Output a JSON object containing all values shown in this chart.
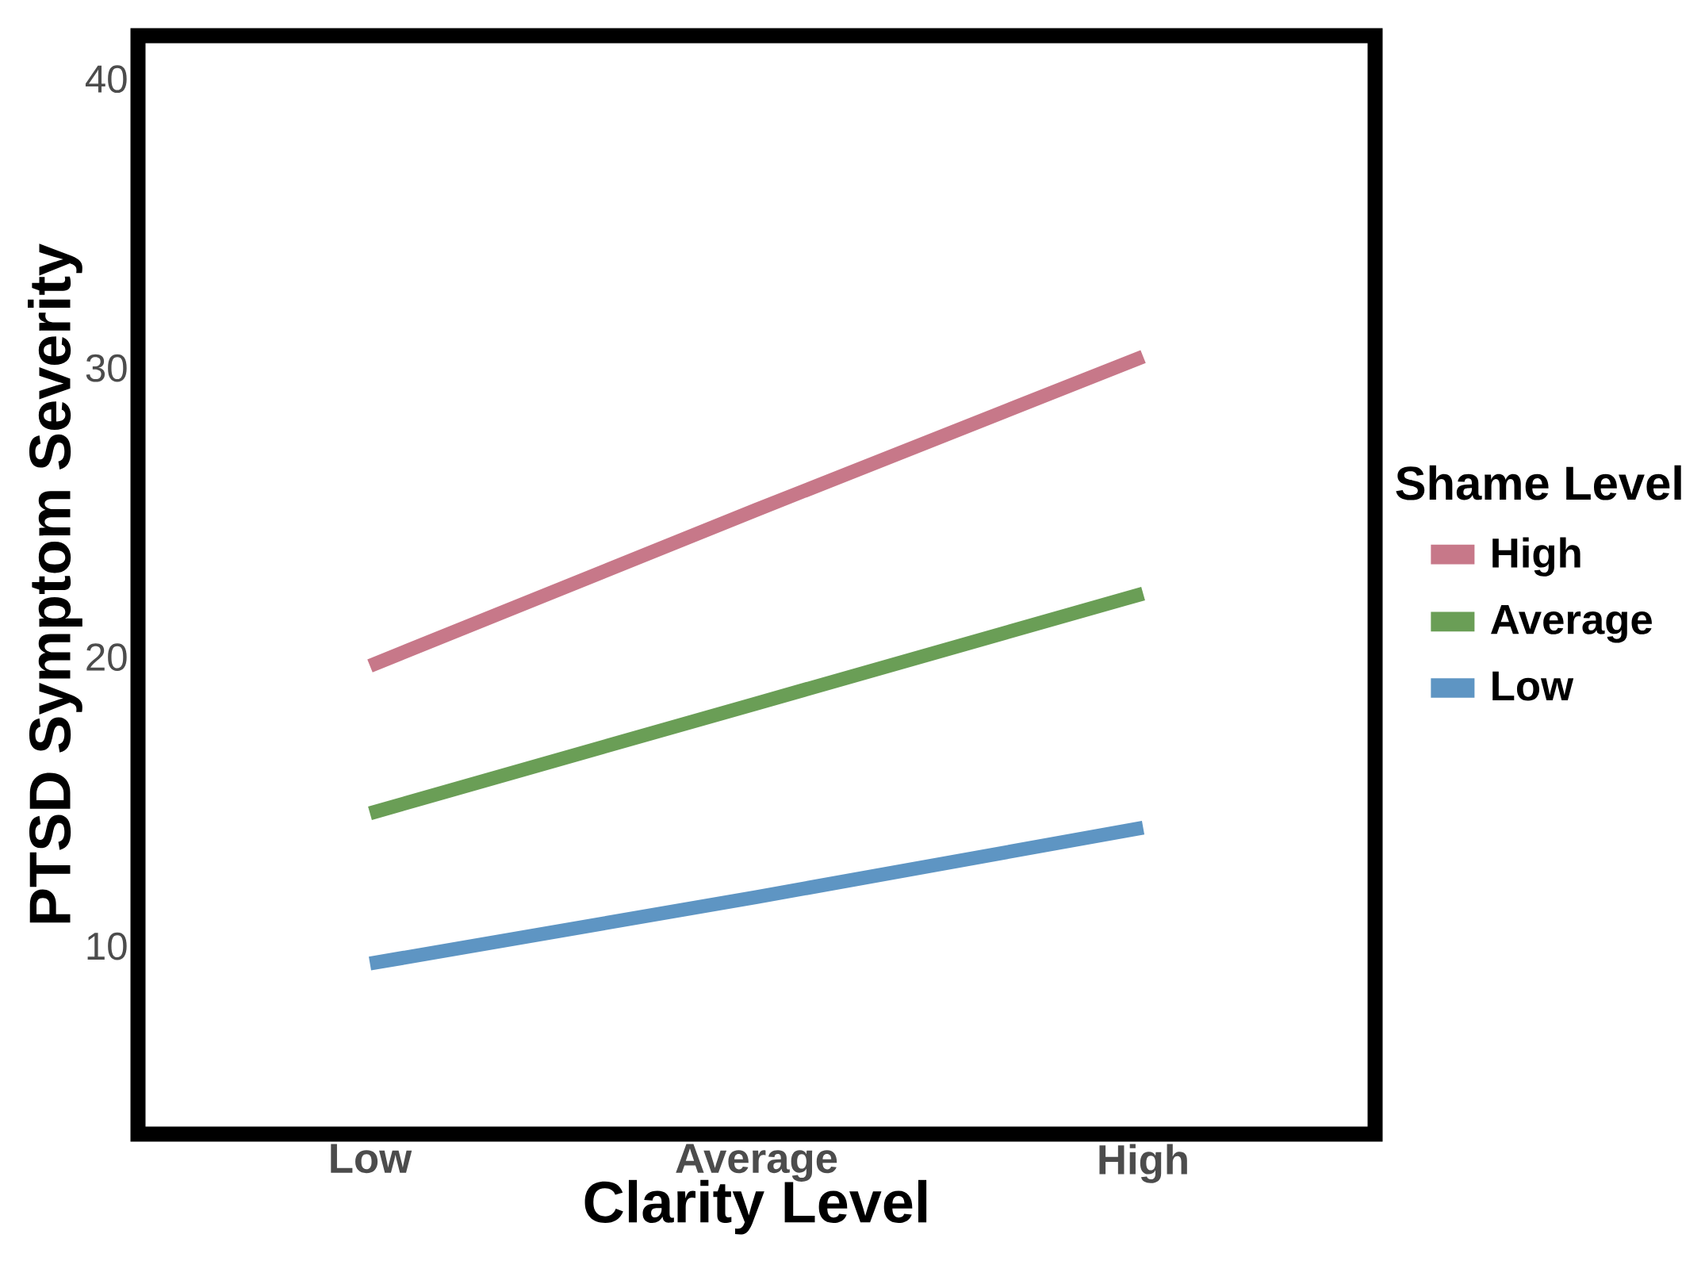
{
  "chart_data": {
    "type": "line",
    "xlabel": "Clarity Level",
    "ylabel": "PTSD Symptom Severity",
    "legend_title": "Shame Level",
    "categories": [
      "Low",
      "Average",
      "High"
    ],
    "series": [
      {
        "name": "High",
        "color": "#c77889",
        "values": [
          19.7,
          25.1,
          30.4
        ]
      },
      {
        "name": "Average",
        "color": "#6a9e56",
        "values": [
          14.6,
          18.4,
          22.2
        ]
      },
      {
        "name": "Low",
        "color": "#5e95c3",
        "values": [
          9.4,
          11.7,
          14.1
        ]
      }
    ],
    "ylim": [
      3.5,
      41.5
    ],
    "yticks": [
      10,
      20,
      30,
      40
    ],
    "legend": "right"
  }
}
